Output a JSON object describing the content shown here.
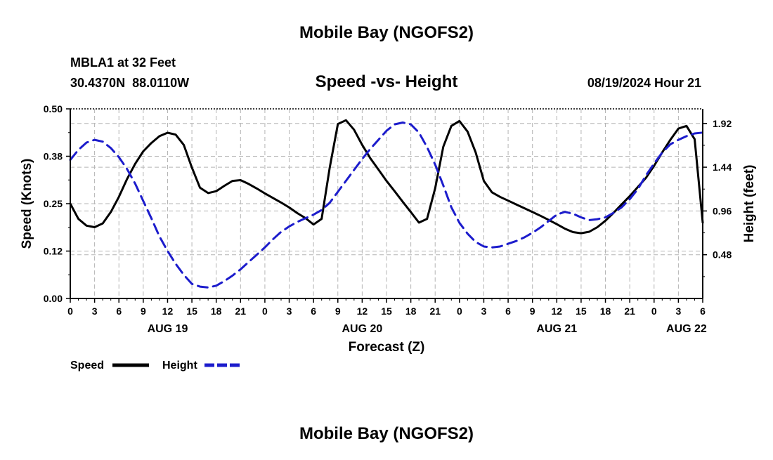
{
  "page": {
    "title": "Mobile Bay (NGOFS2)",
    "footer_title": "Mobile Bay (NGOFS2)"
  },
  "station": {
    "name_line": "MBLA1 at 32 Feet",
    "coords_line": "30.4370N  88.0110W",
    "timestamp": "08/19/2024 Hour 21"
  },
  "chart_data": {
    "type": "line",
    "title": "Speed -vs- Height",
    "xlabel": "Forecast (Z)",
    "ylabel_left": "Speed (Knots)",
    "ylabel_right": "Height (feet)",
    "x_unit": "hours since 2024-08-19 00Z",
    "xlim": [
      0,
      78
    ],
    "ylim_left": [
      0.0,
      0.5
    ],
    "ylim_right": [
      0.0,
      2.08
    ],
    "x_ticks": [
      {
        "x": 0,
        "label": "0"
      },
      {
        "x": 3,
        "label": "3"
      },
      {
        "x": 6,
        "label": "6"
      },
      {
        "x": 9,
        "label": "9"
      },
      {
        "x": 12,
        "label": "12"
      },
      {
        "x": 15,
        "label": "15"
      },
      {
        "x": 18,
        "label": "18"
      },
      {
        "x": 21,
        "label": "21"
      },
      {
        "x": 24,
        "label": "0"
      },
      {
        "x": 27,
        "label": "3"
      },
      {
        "x": 30,
        "label": "6"
      },
      {
        "x": 33,
        "label": "9"
      },
      {
        "x": 36,
        "label": "12"
      },
      {
        "x": 39,
        "label": "15"
      },
      {
        "x": 42,
        "label": "18"
      },
      {
        "x": 45,
        "label": "21"
      },
      {
        "x": 48,
        "label": "0"
      },
      {
        "x": 51,
        "label": "3"
      },
      {
        "x": 54,
        "label": "6"
      },
      {
        "x": 57,
        "label": "9"
      },
      {
        "x": 60,
        "label": "12"
      },
      {
        "x": 63,
        "label": "15"
      },
      {
        "x": 66,
        "label": "18"
      },
      {
        "x": 69,
        "label": "21"
      },
      {
        "x": 72,
        "label": "0"
      },
      {
        "x": 75,
        "label": "3"
      },
      {
        "x": 78,
        "label": "6"
      }
    ],
    "date_labels": [
      {
        "x": 12,
        "label": "AUG 19"
      },
      {
        "x": 36,
        "label": "AUG 20"
      },
      {
        "x": 60,
        "label": "AUG 21"
      },
      {
        "x": 76,
        "label": "AUG 22"
      }
    ],
    "y_ticks_left": [
      {
        "v": 0.0,
        "label": "0.00"
      },
      {
        "v": 0.125,
        "label": "0.12"
      },
      {
        "v": 0.25,
        "label": "0.25"
      },
      {
        "v": 0.375,
        "label": "0.38"
      },
      {
        "v": 0.5,
        "label": "0.50"
      }
    ],
    "y_ticks_right": [
      {
        "v": 0.48,
        "label": "0.48"
      },
      {
        "v": 0.96,
        "label": "0.96"
      },
      {
        "v": 1.44,
        "label": "1.44"
      },
      {
        "v": 1.92,
        "label": "1.92"
      }
    ],
    "grid": true,
    "series": [
      {
        "name": "Speed",
        "axis": "left",
        "color": "#000000",
        "dash": "solid",
        "points": [
          [
            0,
            0.25
          ],
          [
            1,
            0.21
          ],
          [
            2,
            0.192
          ],
          [
            3,
            0.188
          ],
          [
            4,
            0.198
          ],
          [
            5,
            0.228
          ],
          [
            6,
            0.268
          ],
          [
            7,
            0.315
          ],
          [
            8,
            0.355
          ],
          [
            9,
            0.388
          ],
          [
            10,
            0.41
          ],
          [
            11,
            0.428
          ],
          [
            12,
            0.437
          ],
          [
            13,
            0.432
          ],
          [
            14,
            0.405
          ],
          [
            15,
            0.345
          ],
          [
            16,
            0.292
          ],
          [
            17,
            0.278
          ],
          [
            18,
            0.283
          ],
          [
            19,
            0.297
          ],
          [
            20,
            0.31
          ],
          [
            21,
            0.312
          ],
          [
            22,
            0.302
          ],
          [
            23,
            0.29
          ],
          [
            24,
            0.277
          ],
          [
            25,
            0.265
          ],
          [
            26,
            0.253
          ],
          [
            27,
            0.24
          ],
          [
            28,
            0.225
          ],
          [
            29,
            0.212
          ],
          [
            30,
            0.195
          ],
          [
            31,
            0.21
          ],
          [
            32,
            0.345
          ],
          [
            33,
            0.46
          ],
          [
            34,
            0.47
          ],
          [
            35,
            0.445
          ],
          [
            36,
            0.405
          ],
          [
            37,
            0.37
          ],
          [
            38,
            0.34
          ],
          [
            39,
            0.31
          ],
          [
            40,
            0.283
          ],
          [
            41,
            0.255
          ],
          [
            42,
            0.228
          ],
          [
            43,
            0.2
          ],
          [
            44,
            0.21
          ],
          [
            45,
            0.29
          ],
          [
            46,
            0.4
          ],
          [
            47,
            0.455
          ],
          [
            48,
            0.468
          ],
          [
            49,
            0.44
          ],
          [
            50,
            0.385
          ],
          [
            51,
            0.31
          ],
          [
            52,
            0.28
          ],
          [
            53,
            0.268
          ],
          [
            54,
            0.258
          ],
          [
            55,
            0.248
          ],
          [
            56,
            0.238
          ],
          [
            57,
            0.228
          ],
          [
            58,
            0.218
          ],
          [
            59,
            0.207
          ],
          [
            60,
            0.196
          ],
          [
            61,
            0.184
          ],
          [
            62,
            0.175
          ],
          [
            63,
            0.172
          ],
          [
            64,
            0.176
          ],
          [
            65,
            0.188
          ],
          [
            66,
            0.205
          ],
          [
            67,
            0.226
          ],
          [
            68,
            0.248
          ],
          [
            69,
            0.27
          ],
          [
            70,
            0.294
          ],
          [
            71,
            0.318
          ],
          [
            72,
            0.35
          ],
          [
            73,
            0.385
          ],
          [
            74,
            0.418
          ],
          [
            75,
            0.448
          ],
          [
            76,
            0.455
          ],
          [
            77,
            0.42
          ],
          [
            78,
            0.2
          ]
        ]
      },
      {
        "name": "Height",
        "axis": "right",
        "color": "#1c1ccc",
        "dash": "dashed",
        "points": [
          [
            0,
            1.52
          ],
          [
            1,
            1.63
          ],
          [
            2,
            1.71
          ],
          [
            3,
            1.74
          ],
          [
            4,
            1.72
          ],
          [
            5,
            1.65
          ],
          [
            6,
            1.55
          ],
          [
            7,
            1.42
          ],
          [
            8,
            1.26
          ],
          [
            9,
            1.07
          ],
          [
            10,
            0.88
          ],
          [
            11,
            0.68
          ],
          [
            12,
            0.52
          ],
          [
            13,
            0.38
          ],
          [
            14,
            0.26
          ],
          [
            15,
            0.16
          ],
          [
            16,
            0.13
          ],
          [
            17,
            0.12
          ],
          [
            18,
            0.14
          ],
          [
            19,
            0.19
          ],
          [
            20,
            0.25
          ],
          [
            21,
            0.32
          ],
          [
            22,
            0.4
          ],
          [
            23,
            0.48
          ],
          [
            24,
            0.56
          ],
          [
            25,
            0.65
          ],
          [
            26,
            0.73
          ],
          [
            27,
            0.79
          ],
          [
            28,
            0.84
          ],
          [
            29,
            0.88
          ],
          [
            30,
            0.92
          ],
          [
            31,
            0.97
          ],
          [
            32,
            1.05
          ],
          [
            33,
            1.17
          ],
          [
            34,
            1.29
          ],
          [
            35,
            1.41
          ],
          [
            36,
            1.53
          ],
          [
            37,
            1.64
          ],
          [
            38,
            1.74
          ],
          [
            39,
            1.84
          ],
          [
            40,
            1.91
          ],
          [
            41,
            1.93
          ],
          [
            42,
            1.91
          ],
          [
            43,
            1.82
          ],
          [
            44,
            1.66
          ],
          [
            45,
            1.47
          ],
          [
            46,
            1.24
          ],
          [
            47,
            1.0
          ],
          [
            48,
            0.83
          ],
          [
            49,
            0.71
          ],
          [
            50,
            0.62
          ],
          [
            51,
            0.57
          ],
          [
            52,
            0.56
          ],
          [
            53,
            0.57
          ],
          [
            54,
            0.6
          ],
          [
            55,
            0.63
          ],
          [
            56,
            0.67
          ],
          [
            57,
            0.72
          ],
          [
            58,
            0.78
          ],
          [
            59,
            0.85
          ],
          [
            60,
            0.92
          ],
          [
            61,
            0.95
          ],
          [
            62,
            0.93
          ],
          [
            63,
            0.89
          ],
          [
            64,
            0.86
          ],
          [
            65,
            0.87
          ],
          [
            66,
            0.89
          ],
          [
            67,
            0.94
          ],
          [
            68,
            1.0
          ],
          [
            69,
            1.09
          ],
          [
            70,
            1.2
          ],
          [
            71,
            1.35
          ],
          [
            72,
            1.48
          ],
          [
            73,
            1.6
          ],
          [
            74,
            1.69
          ],
          [
            75,
            1.74
          ],
          [
            76,
            1.78
          ],
          [
            77,
            1.81
          ],
          [
            78,
            1.82
          ]
        ]
      }
    ],
    "legend": {
      "placement": "bottom-left",
      "entries": [
        {
          "label": "Speed",
          "color": "#000000",
          "dash": "solid"
        },
        {
          "label": "Height",
          "color": "#1c1ccc",
          "dash": "dashed"
        }
      ]
    }
  }
}
